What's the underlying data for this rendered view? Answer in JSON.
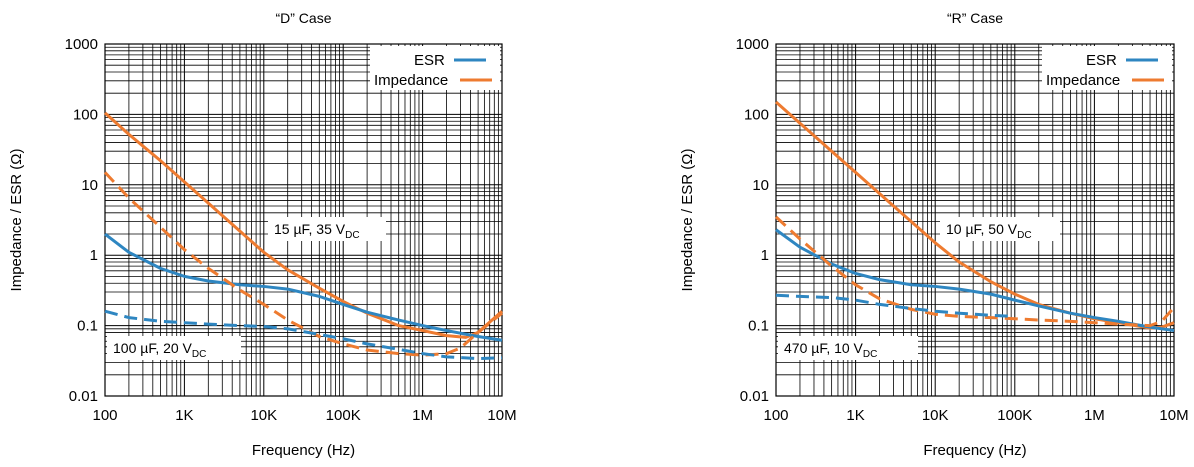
{
  "chart_data": [
    {
      "type": "line",
      "title": "“D” Case",
      "xlabel": "Frequency (Hz)",
      "ylabel": "Impedance / ESR (Ω)",
      "xscale": "log",
      "yscale": "log",
      "xlim": [
        100,
        10000000
      ],
      "ylim": [
        0.01,
        1000
      ],
      "grid": true,
      "legend_position": "top-right",
      "x_tick_labels": [
        "100",
        "1K",
        "10K",
        "100K",
        "1M",
        "10M"
      ],
      "y_tick_labels": [
        "0.01",
        "0.1",
        "1",
        "10",
        "100",
        "1000"
      ],
      "legend": [
        {
          "label": "ESR",
          "color": "#2e86c1"
        },
        {
          "label": "Impedance",
          "color": "#ee7b30"
        }
      ],
      "annotations": [
        {
          "text": "15 µF, 35 V",
          "sub": "DC"
        },
        {
          "text": "100 µF, 20 V",
          "sub": "DC"
        }
      ],
      "series": [
        {
          "name": "Impedance",
          "part": "15 µF, 35 V DC",
          "color": "#ee7b30",
          "style": "solid",
          "x": [
            100,
            200,
            500,
            1000,
            2000,
            5000,
            10000,
            20000,
            50000,
            100000,
            200000,
            500000,
            1000000,
            2000000,
            3500000,
            5000000,
            10000000
          ],
          "y": [
            105,
            52,
            22,
            11,
            5.5,
            2.2,
            1.1,
            0.62,
            0.34,
            0.22,
            0.15,
            0.1,
            0.085,
            0.072,
            0.068,
            0.08,
            0.16
          ]
        },
        {
          "name": "ESR",
          "part": "15 µF, 35 V DC",
          "color": "#2e86c1",
          "style": "solid",
          "x": [
            100,
            200,
            500,
            1000,
            2000,
            5000,
            10000,
            20000,
            50000,
            100000,
            200000,
            500000,
            1000000,
            2000000,
            5000000,
            10000000
          ],
          "y": [
            2,
            1.1,
            0.65,
            0.5,
            0.43,
            0.38,
            0.36,
            0.33,
            0.26,
            0.2,
            0.155,
            0.12,
            0.1,
            0.085,
            0.07,
            0.062
          ]
        },
        {
          "name": "Impedance",
          "part": "100 µF, 20 V DC",
          "color": "#ee7b30",
          "style": "dashed",
          "x": [
            100,
            200,
            500,
            1000,
            2000,
            5000,
            10000,
            20000,
            50000,
            100000,
            200000,
            500000,
            1000000,
            2000000,
            3000000,
            5000000,
            10000000
          ],
          "y": [
            15,
            6.5,
            2.5,
            1.2,
            0.65,
            0.32,
            0.2,
            0.12,
            0.07,
            0.055,
            0.045,
            0.04,
            0.038,
            0.04,
            0.048,
            0.08,
            0.15
          ]
        },
        {
          "name": "ESR",
          "part": "100 µF, 20 V DC",
          "color": "#2e86c1",
          "style": "dashed",
          "x": [
            100,
            200,
            500,
            1000,
            2000,
            5000,
            10000,
            20000,
            50000,
            100000,
            200000,
            500000,
            1000000,
            2000000,
            5000000,
            10000000
          ],
          "y": [
            0.16,
            0.13,
            0.115,
            0.11,
            0.105,
            0.1,
            0.097,
            0.09,
            0.075,
            0.065,
            0.055,
            0.046,
            0.04,
            0.036,
            0.034,
            0.035
          ]
        }
      ]
    },
    {
      "type": "line",
      "title": "“R” Case",
      "xlabel": "Frequency (Hz)",
      "ylabel": "Impedance / ESR (Ω)",
      "xscale": "log",
      "yscale": "log",
      "xlim": [
        100,
        10000000
      ],
      "ylim": [
        0.01,
        1000
      ],
      "grid": true,
      "legend_position": "top-right",
      "x_tick_labels": [
        "100",
        "1K",
        "10K",
        "100K",
        "1M",
        "10M"
      ],
      "y_tick_labels": [
        "0.01",
        "0.1",
        "1",
        "10",
        "100",
        "1000"
      ],
      "legend": [
        {
          "label": "ESR",
          "color": "#2e86c1"
        },
        {
          "label": "Impedance",
          "color": "#ee7b30"
        }
      ],
      "annotations": [
        {
          "text": "10 µF, 50 V",
          "sub": "DC"
        },
        {
          "text": "470 µF, 10 V",
          "sub": "DC"
        }
      ],
      "series": [
        {
          "name": "Impedance",
          "part": "10 µF, 50 V DC",
          "color": "#ee7b30",
          "style": "solid",
          "x": [
            100,
            200,
            500,
            1000,
            2000,
            5000,
            10000,
            20000,
            50000,
            100000,
            200000,
            500000,
            1000000,
            2000000,
            5000000,
            7000000,
            10000000
          ],
          "y": [
            150,
            75,
            30,
            15,
            7.5,
            3,
            1.5,
            0.8,
            0.42,
            0.28,
            0.2,
            0.15,
            0.125,
            0.11,
            0.092,
            0.095,
            0.11
          ]
        },
        {
          "name": "ESR",
          "part": "10 µF, 50 V DC",
          "color": "#2e86c1",
          "style": "solid",
          "x": [
            100,
            200,
            500,
            1000,
            2000,
            5000,
            10000,
            20000,
            50000,
            100000,
            200000,
            500000,
            1000000,
            2000000,
            5000000,
            10000000
          ],
          "y": [
            2.3,
            1.3,
            0.75,
            0.55,
            0.45,
            0.38,
            0.36,
            0.33,
            0.28,
            0.23,
            0.19,
            0.15,
            0.13,
            0.115,
            0.095,
            0.085
          ]
        },
        {
          "name": "Impedance",
          "part": "470 µF, 10 V DC",
          "color": "#ee7b30",
          "style": "dashed",
          "x": [
            100,
            200,
            500,
            1000,
            2000,
            5000,
            10000,
            20000,
            50000,
            100000,
            200000,
            500000,
            1000000,
            2000000,
            5000000,
            7000000,
            10000000
          ],
          "y": [
            3.5,
            1.7,
            0.7,
            0.38,
            0.24,
            0.17,
            0.145,
            0.135,
            0.13,
            0.125,
            0.12,
            0.115,
            0.11,
            0.105,
            0.1,
            0.115,
            0.18
          ]
        },
        {
          "name": "ESR",
          "part": "470 µF, 10 V DC",
          "color": "#2e86c1",
          "style": "dashed",
          "x": [
            100,
            200,
            500,
            1000,
            2000,
            5000,
            10000,
            20000,
            50000,
            100000
          ],
          "y": [
            0.27,
            0.26,
            0.25,
            0.23,
            0.2,
            0.175,
            0.16,
            0.15,
            0.14,
            0.135
          ]
        }
      ]
    }
  ]
}
